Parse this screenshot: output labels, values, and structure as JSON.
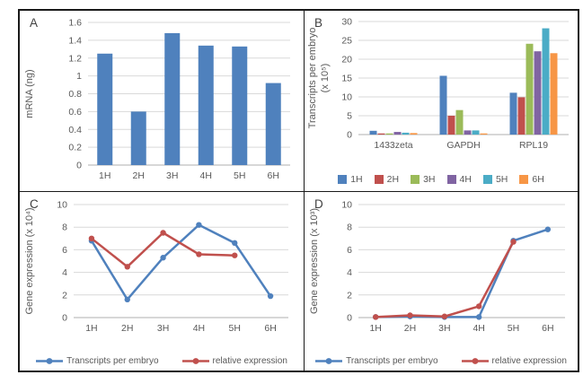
{
  "figure": {
    "background": "#ffffff",
    "border_color": "#1a1a1a",
    "grid_color": "#d9d9d9",
    "axis_color": "#bfbfbf",
    "text_color": "#595959"
  },
  "chart_data": [
    {
      "panel_label": "A",
      "type": "bar",
      "title": "",
      "xlabel": "",
      "ylabel": "mRNA (ng)",
      "categories": [
        "1H",
        "2H",
        "3H",
        "4H",
        "5H",
        "6H"
      ],
      "values": [
        1.25,
        0.6,
        1.48,
        1.34,
        1.33,
        0.92
      ],
      "bar_color": "#4f81bd",
      "ylim": [
        0,
        1.6
      ],
      "ytick": 0.2,
      "grid": true,
      "legend_position": "none"
    },
    {
      "panel_label": "B",
      "type": "bar",
      "title": "",
      "xlabel": "",
      "ylabel": "Transcripts per embryo",
      "ylabel2": "(x 10⁵)",
      "categories": [
        "1433zeta",
        "GAPDH",
        "RPL19"
      ],
      "series": [
        {
          "name": "1H",
          "color": "#4f81bd",
          "values": [
            1.0,
            15.6,
            11.1
          ]
        },
        {
          "name": "2H",
          "color": "#c0504d",
          "values": [
            0.3,
            5.0,
            9.9
          ]
        },
        {
          "name": "3H",
          "color": "#9bbb59",
          "values": [
            0.3,
            6.5,
            24.1
          ]
        },
        {
          "name": "4H",
          "color": "#8064a2",
          "values": [
            0.7,
            1.1,
            22.1
          ]
        },
        {
          "name": "5H",
          "color": "#4bacc6",
          "values": [
            0.5,
            1.1,
            28.2
          ]
        },
        {
          "name": "6H",
          "color": "#f79646",
          "values": [
            0.4,
            0.3,
            21.6
          ]
        }
      ],
      "ylim": [
        0,
        30
      ],
      "ytick": 5,
      "grid": true,
      "legend_position": "bottom"
    },
    {
      "panel_label": "C",
      "type": "line",
      "title": "",
      "xlabel": "",
      "ylabel": "Gene expression (x 10⁴)",
      "categories": [
        "1H",
        "2H",
        "3H",
        "4H",
        "5H",
        "6H"
      ],
      "series": [
        {
          "name": "Transcripts per embryo",
          "color": "#4f81bd",
          "values": [
            6.8,
            1.6,
            5.3,
            8.2,
            6.6,
            1.9
          ]
        },
        {
          "name": "relative expression",
          "color": "#c0504d",
          "values": [
            7.0,
            4.5,
            7.5,
            5.6,
            5.5,
            null
          ]
        }
      ],
      "ylim": [
        0,
        10
      ],
      "ytick": 2,
      "grid": true,
      "legend_position": "bottom"
    },
    {
      "panel_label": "D",
      "type": "line",
      "title": "",
      "xlabel": "",
      "ylabel": "Gene expression (x 10³)",
      "categories": [
        "1H",
        "2H",
        "3H",
        "4H",
        "5H",
        "6H"
      ],
      "series": [
        {
          "name": "Transcripts per embryo",
          "color": "#4f81bd",
          "values": [
            0.05,
            0.1,
            0.05,
            0.05,
            6.8,
            7.8
          ]
        },
        {
          "name": "relative expression",
          "color": "#c0504d",
          "values": [
            0.05,
            0.2,
            0.1,
            1.0,
            6.7,
            null
          ]
        }
      ],
      "ylim": [
        0,
        10
      ],
      "ytick": 2,
      "grid": true,
      "legend_position": "bottom"
    }
  ]
}
